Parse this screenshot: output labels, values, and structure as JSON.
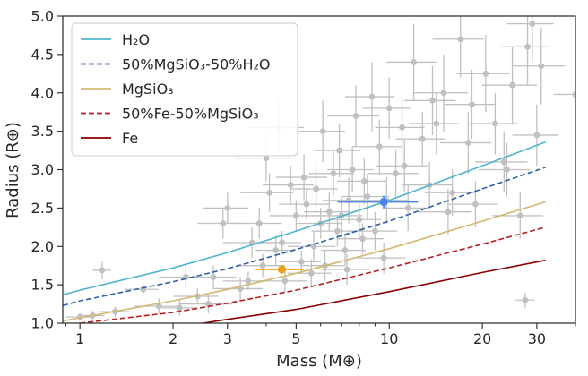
{
  "chart_data": {
    "type": "scatter",
    "xlabel": "Mass (M⊕)",
    "ylabel": "Radius (R⊕)",
    "x_scale": "log",
    "xlim": [
      0.88,
      40
    ],
    "ylim": [
      1.0,
      5.0
    ],
    "x_ticks": [
      1,
      2,
      3,
      5,
      10,
      20,
      30
    ],
    "x_tick_labels": [
      "1",
      "2",
      "3",
      "5",
      "10",
      "20",
      "30"
    ],
    "y_ticks": [
      1.0,
      1.5,
      2.0,
      2.5,
      3.0,
      3.5,
      4.0,
      4.5,
      5.0
    ],
    "y_tick_labels": [
      "1.0",
      "1.5",
      "2.0",
      "2.5",
      "3.0",
      "3.5",
      "4.0",
      "4.5",
      "5.0"
    ],
    "grid": false,
    "legend_position": "top-left",
    "series": [
      {
        "name": "H₂O",
        "line_style": "solid",
        "color": "#4fb3cf",
        "x": [
          0.88,
          1,
          2,
          3,
          5,
          10,
          20,
          32
        ],
        "y": [
          1.37,
          1.43,
          1.72,
          1.92,
          2.2,
          2.6,
          3.05,
          3.36
        ]
      },
      {
        "name": "50%MgSiO₃-50%H₂O",
        "line_style": "dashed",
        "color": "#2f5fa7",
        "x": [
          0.88,
          1,
          2,
          3,
          5,
          10,
          20,
          32
        ],
        "y": [
          1.23,
          1.29,
          1.54,
          1.71,
          1.96,
          2.33,
          2.75,
          3.03
        ]
      },
      {
        "name": "MgSiO₃",
        "line_style": "solid",
        "color": "#d4b872",
        "x": [
          0.88,
          1,
          2,
          3,
          5,
          10,
          20,
          32
        ],
        "y": [
          1.03,
          1.07,
          1.29,
          1.44,
          1.65,
          1.97,
          2.33,
          2.58
        ]
      },
      {
        "name": "50%Fe-50%MgSiO₃",
        "line_style": "dashed",
        "color": "#b22222",
        "x": [
          1,
          2,
          3,
          5,
          10,
          20,
          32
        ],
        "y": [
          1.0,
          1.14,
          1.26,
          1.43,
          1.72,
          2.03,
          2.25
        ]
      },
      {
        "name": "Fe",
        "line_style": "solid",
        "color": "#8b0000",
        "x": [
          2.5,
          3,
          5,
          10,
          20,
          32
        ],
        "y": [
          1.0,
          1.05,
          1.18,
          1.41,
          1.66,
          1.82
        ]
      }
    ],
    "observed_planets": {
      "color": "#c0c0c0",
      "points": [
        [
          1.18,
          1.69,
          0.08,
          0.12
        ],
        [
          1.0,
          1.08,
          0.1,
          0.05
        ],
        [
          1.1,
          1.1,
          0.1,
          0.06
        ],
        [
          1.3,
          1.15,
          0.15,
          0.07
        ],
        [
          1.6,
          1.44,
          0.2,
          0.1
        ],
        [
          1.8,
          1.22,
          0.3,
          0.1
        ],
        [
          2.1,
          1.2,
          0.3,
          0.1
        ],
        [
          2.2,
          1.6,
          0.4,
          0.15
        ],
        [
          2.4,
          1.35,
          0.4,
          0.1
        ],
        [
          2.6,
          1.25,
          0.5,
          0.12
        ],
        [
          2.9,
          2.3,
          0.5,
          0.2
        ],
        [
          3.0,
          2.5,
          0.5,
          0.2
        ],
        [
          3.3,
          1.45,
          0.6,
          0.15
        ],
        [
          3.5,
          1.55,
          0.6,
          0.12
        ],
        [
          3.8,
          2.3,
          0.7,
          0.2
        ],
        [
          4.0,
          3.15,
          0.8,
          0.3
        ],
        [
          4.1,
          2.7,
          0.8,
          0.25
        ],
        [
          4.3,
          1.95,
          0.6,
          0.2
        ],
        [
          4.5,
          2.05,
          0.7,
          0.15
        ],
        [
          4.6,
          1.55,
          0.8,
          0.15
        ],
        [
          4.8,
          2.8,
          0.9,
          0.25
        ],
        [
          5.0,
          2.4,
          0.9,
          0.2
        ],
        [
          5.2,
          1.8,
          0.8,
          0.15
        ],
        [
          5.4,
          2.55,
          1.0,
          0.2
        ],
        [
          5.6,
          1.65,
          0.9,
          0.18
        ],
        [
          5.8,
          2.75,
          1.0,
          0.3
        ],
        [
          6.0,
          2.3,
          1.0,
          0.2
        ],
        [
          6.2,
          1.75,
          1.0,
          0.2
        ],
        [
          6.4,
          2.45,
          1.1,
          0.25
        ],
        [
          6.6,
          2.95,
          1.1,
          0.3
        ],
        [
          6.8,
          2.2,
          1.2,
          0.2
        ],
        [
          7.0,
          2.4,
          1.2,
          0.25
        ],
        [
          7.2,
          1.95,
          1.2,
          0.2
        ],
        [
          7.4,
          2.6,
          1.3,
          0.3
        ],
        [
          7.6,
          3.0,
          1.3,
          0.3
        ],
        [
          7.8,
          3.7,
          1.5,
          0.4
        ],
        [
          8.0,
          2.35,
          1.4,
          0.25
        ],
        [
          8.2,
          2.1,
          1.4,
          0.2
        ],
        [
          8.5,
          2.65,
          1.5,
          0.3
        ],
        [
          8.8,
          3.95,
          1.6,
          0.45
        ],
        [
          9.0,
          2.2,
          1.6,
          0.25
        ],
        [
          9.3,
          3.3,
          1.7,
          0.35
        ],
        [
          9.6,
          1.85,
          1.7,
          0.2
        ],
        [
          10.0,
          3.8,
          1.8,
          0.4
        ],
        [
          10.5,
          2.95,
          2.0,
          0.3
        ],
        [
          11.0,
          3.55,
          2.0,
          0.4
        ],
        [
          11.5,
          2.5,
          2.0,
          0.3
        ],
        [
          12.0,
          4.4,
          2.2,
          0.5
        ],
        [
          12.8,
          3.4,
          2.3,
          0.35
        ],
        [
          13.5,
          2.8,
          2.5,
          0.3
        ],
        [
          14.2,
          3.6,
          2.6,
          0.4
        ],
        [
          15.0,
          4.0,
          3.0,
          0.5
        ],
        [
          16.0,
          2.7,
          3.0,
          0.3
        ],
        [
          17.0,
          4.7,
          3.2,
          0.5
        ],
        [
          18.0,
          3.35,
          3.4,
          0.4
        ],
        [
          19.0,
          2.55,
          3.5,
          0.3
        ],
        [
          20.5,
          4.25,
          4.0,
          0.5
        ],
        [
          22.0,
          3.6,
          4.0,
          0.4
        ],
        [
          23.5,
          3.1,
          4.5,
          0.4
        ],
        [
          25.0,
          4.1,
          5.0,
          0.5
        ],
        [
          26.5,
          2.4,
          5.0,
          0.3
        ],
        [
          27.5,
          1.3,
          2.0,
          0.1
        ],
        [
          28.0,
          4.6,
          5.0,
          0.5
        ],
        [
          29.0,
          4.9,
          5.0,
          0.5
        ],
        [
          30.0,
          3.45,
          5.0,
          0.4
        ],
        [
          31.0,
          4.35,
          6.0,
          0.5
        ],
        [
          40.0,
          3.98,
          6.0,
          0.4
        ],
        [
          3.6,
          2.05,
          0.7,
          0.2
        ],
        [
          5.3,
          2.9,
          1.0,
          0.3
        ],
        [
          6.9,
          3.25,
          1.2,
          0.35
        ],
        [
          8.3,
          2.85,
          1.5,
          0.3
        ],
        [
          11.2,
          3.05,
          2.1,
          0.35
        ],
        [
          13.8,
          3.9,
          2.6,
          0.45
        ],
        [
          2.7,
          1.6,
          0.5,
          0.15
        ],
        [
          3.9,
          1.75,
          0.7,
          0.15
        ],
        [
          7.3,
          1.7,
          1.3,
          0.2
        ],
        [
          9.8,
          2.6,
          1.8,
          0.3
        ],
        [
          15.5,
          2.45,
          3.0,
          0.3
        ],
        [
          18.5,
          3.85,
          3.5,
          0.45
        ],
        [
          24.0,
          3.0,
          4.5,
          0.35
        ],
        [
          6.1,
          3.5,
          1.1,
          0.4
        ],
        [
          4.4,
          3.55,
          0.9,
          0.35
        ],
        [
          5.7,
          2.0,
          1.0,
          0.2
        ]
      ]
    },
    "highlighted_planets": [
      {
        "color": "#4a86e8",
        "x": 9.6,
        "y": 2.58,
        "xerr": 2.8,
        "yerr": 0.08
      },
      {
        "color": "#f0a020",
        "x": 4.5,
        "y": 1.7,
        "xerr": 0.8,
        "yerr": 0.06
      }
    ]
  }
}
